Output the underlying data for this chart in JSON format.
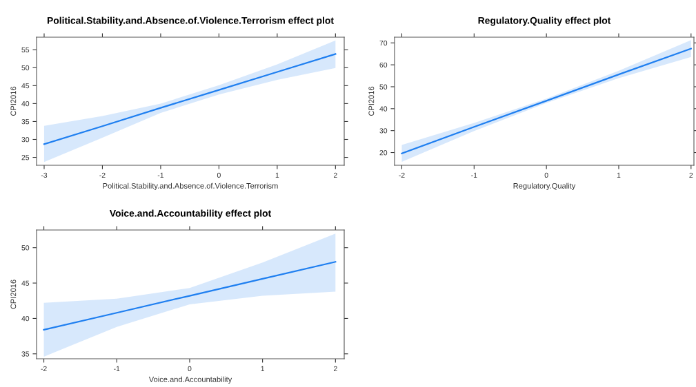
{
  "chart_data": [
    {
      "type": "line",
      "title": "Political.Stability.and.Absence.of.Violence.Terrorism effect plot",
      "xlabel": "Political.Stability.and.Absence.of.Violence.Terrorism",
      "ylabel": "CPI2016",
      "x": [
        -3,
        -2,
        -1,
        0,
        1,
        2
      ],
      "series": [
        {
          "color": "#1f7ff0",
          "values": [
            28.7,
            33.7,
            38.8,
            43.8,
            48.8,
            53.8
          ],
          "lower": [
            23.7,
            30.5,
            37.4,
            42.5,
            46.6,
            49.9
          ],
          "upper": [
            33.8,
            36.5,
            40.0,
            45.1,
            50.9,
            57.6
          ]
        }
      ],
      "xlim": [
        -3.13,
        2.15
      ],
      "ylim": [
        22.8,
        58.5
      ],
      "xticks": [
        -3,
        -2,
        -1,
        0,
        1,
        2
      ],
      "yticks": [
        25,
        30,
        35,
        40,
        45,
        50,
        55
      ]
    },
    {
      "type": "line",
      "title": "Regulatory.Quality effect plot",
      "xlabel": "Regulatory.Quality",
      "ylabel": "CPI2016",
      "x": [
        -2,
        -1,
        0,
        1,
        2
      ],
      "series": [
        {
          "color": "#1f7ff0",
          "values": [
            19.6,
            31.7,
            43.6,
            55.6,
            67.4
          ],
          "lower": [
            15.8,
            29.8,
            42.6,
            53.9,
            63.6
          ],
          "upper": [
            23.5,
            33.5,
            44.6,
            57.3,
            71.3
          ]
        }
      ],
      "xlim": [
        -2.1,
        2.04
      ],
      "ylim": [
        14.2,
        72.6
      ],
      "xticks": [
        -2,
        -1,
        0,
        1,
        2
      ],
      "yticks": [
        20,
        30,
        40,
        50,
        60,
        70
      ]
    },
    {
      "type": "line",
      "title": "Voice.and.Accountability effect plot",
      "xlabel": "Voice.and.Accountability",
      "ylabel": "CPI2016",
      "x": [
        -2,
        -1,
        0,
        1,
        2
      ],
      "series": [
        {
          "color": "#1f7ff0",
          "values": [
            38.4,
            40.8,
            43.2,
            45.6,
            48.0
          ],
          "lower": [
            34.6,
            38.8,
            42.0,
            43.2,
            43.8
          ],
          "upper": [
            42.2,
            42.8,
            44.3,
            47.9,
            52.0
          ]
        }
      ],
      "xlim": [
        -2.1,
        2.12
      ],
      "ylim": [
        34.3,
        52.5
      ],
      "xticks": [
        -2,
        -1,
        0,
        1,
        2
      ],
      "yticks": [
        35,
        40,
        45,
        50
      ]
    }
  ]
}
